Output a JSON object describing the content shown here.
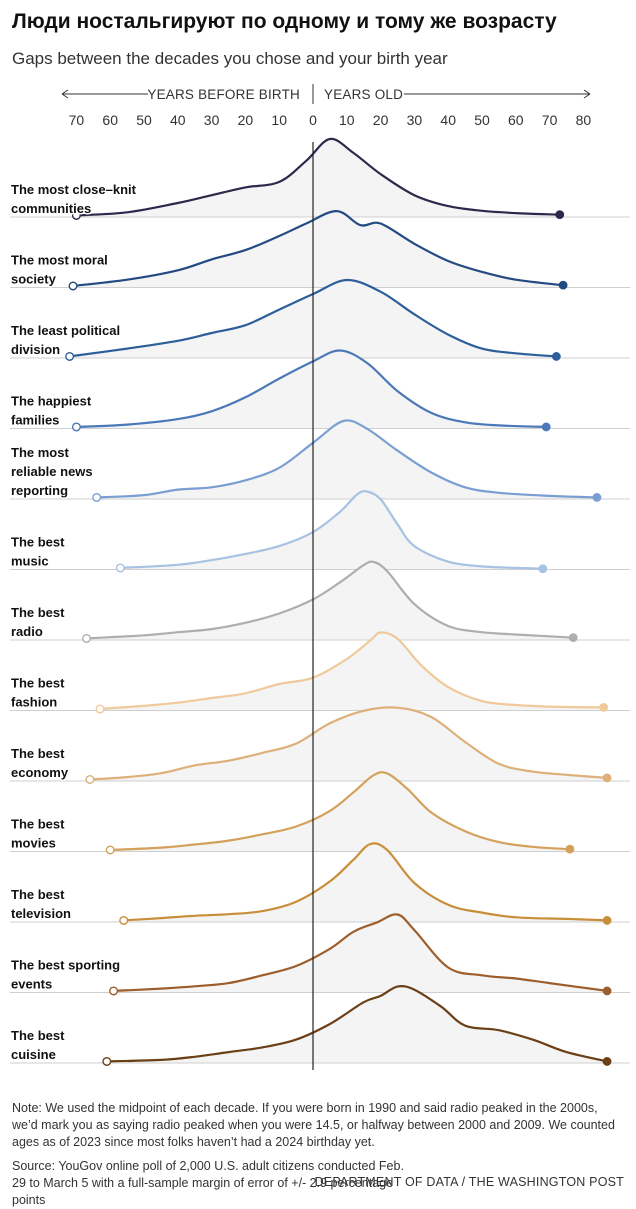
{
  "title": "Люди ностальгируют по одному и тому же возрасту",
  "subtitle": "Gaps between the decades you chose and your birth year",
  "note": "Note: We used the midpoint of each decade. If you were born in 1990 and said radio peaked in the 2000s, we’d mark you as saying radio peaked when you were 14.5, or halfway between 2000 and 2009. We counted ages as of 2023 since most folks haven’t had a 2024 birthday yet.",
  "source": "Source: YouGov online poll of 2,000 U.S. adult citizens conducted Feb. 29 to March 5 with a full-sample margin of error of +/- 2.9 percentage points",
  "credit": "DEPARTMENT OF DATA / THE WASHINGTON POST",
  "chart_data": {
    "type": "ridgeline",
    "x_axis": {
      "left_label": "YEARS BEFORE BIRTH",
      "right_label": "YEARS OLD",
      "ticks": [
        -70,
        -60,
        -50,
        -40,
        -30,
        -20,
        -10,
        0,
        10,
        20,
        30,
        40,
        50,
        60,
        70,
        80
      ],
      "tick_labels": [
        "70",
        "60",
        "50",
        "40",
        "30",
        "20",
        "10",
        "0",
        "10",
        "20",
        "30",
        "40",
        "50",
        "60",
        "70",
        "80"
      ],
      "range": [
        -72,
        83
      ]
    },
    "series": [
      {
        "name": "The most close-knit communities",
        "label_lines": [
          "The most close–knit",
          "communities"
        ],
        "color": "#2b2a4c",
        "min": -70,
        "max": 73,
        "points": [
          [
            -70,
            0.02
          ],
          [
            -55,
            0.06
          ],
          [
            -40,
            0.18
          ],
          [
            -30,
            0.28
          ],
          [
            -20,
            0.38
          ],
          [
            -10,
            0.45
          ],
          [
            -2,
            0.72
          ],
          [
            5,
            1.0
          ],
          [
            12,
            0.82
          ],
          [
            20,
            0.55
          ],
          [
            30,
            0.28
          ],
          [
            40,
            0.14
          ],
          [
            50,
            0.08
          ],
          [
            60,
            0.05
          ],
          [
            73,
            0.03
          ]
        ]
      },
      {
        "name": "The most moral society",
        "label_lines": [
          "The most moral",
          "society"
        ],
        "color": "#244a82",
        "min": -71,
        "max": 74,
        "points": [
          [
            -71,
            0.02
          ],
          [
            -55,
            0.1
          ],
          [
            -40,
            0.22
          ],
          [
            -30,
            0.36
          ],
          [
            -20,
            0.48
          ],
          [
            -10,
            0.66
          ],
          [
            -2,
            0.82
          ],
          [
            7,
            0.98
          ],
          [
            14,
            0.8
          ],
          [
            20,
            0.82
          ],
          [
            30,
            0.56
          ],
          [
            40,
            0.34
          ],
          [
            50,
            0.2
          ],
          [
            60,
            0.1
          ],
          [
            74,
            0.03
          ]
        ]
      },
      {
        "name": "The least political division",
        "label_lines": [
          "The least political",
          "division"
        ],
        "color": "#2e5e9a",
        "min": -72,
        "max": 72,
        "points": [
          [
            -72,
            0.02
          ],
          [
            -55,
            0.12
          ],
          [
            -40,
            0.22
          ],
          [
            -30,
            0.32
          ],
          [
            -20,
            0.42
          ],
          [
            -10,
            0.62
          ],
          [
            0,
            0.82
          ],
          [
            10,
            1.0
          ],
          [
            20,
            0.85
          ],
          [
            30,
            0.56
          ],
          [
            40,
            0.3
          ],
          [
            50,
            0.12
          ],
          [
            60,
            0.06
          ],
          [
            72,
            0.02
          ]
        ]
      },
      {
        "name": "The happiest families",
        "label_lines": [
          "The happiest",
          "families"
        ],
        "color": "#4a78b8",
        "min": -70,
        "max": 69,
        "points": [
          [
            -70,
            0.02
          ],
          [
            -55,
            0.05
          ],
          [
            -40,
            0.12
          ],
          [
            -30,
            0.22
          ],
          [
            -20,
            0.4
          ],
          [
            -10,
            0.64
          ],
          [
            0,
            0.86
          ],
          [
            8,
            1.0
          ],
          [
            16,
            0.84
          ],
          [
            25,
            0.48
          ],
          [
            35,
            0.2
          ],
          [
            45,
            0.08
          ],
          [
            55,
            0.04
          ],
          [
            69,
            0.02
          ]
        ]
      },
      {
        "name": "The most reliable news reporting",
        "label_lines": [
          "The most",
          "reliable news",
          "reporting"
        ],
        "color": "#7a9ed2",
        "min": -64,
        "max": 84,
        "points": [
          [
            -64,
            0.02
          ],
          [
            -50,
            0.05
          ],
          [
            -40,
            0.12
          ],
          [
            -30,
            0.15
          ],
          [
            -20,
            0.24
          ],
          [
            -10,
            0.4
          ],
          [
            0,
            0.72
          ],
          [
            9,
            1.0
          ],
          [
            16,
            0.9
          ],
          [
            25,
            0.62
          ],
          [
            35,
            0.34
          ],
          [
            45,
            0.15
          ],
          [
            55,
            0.08
          ],
          [
            70,
            0.04
          ],
          [
            84,
            0.02
          ]
        ]
      },
      {
        "name": "The best music",
        "label_lines": [
          "The best",
          "music"
        ],
        "color": "#a7c2e2",
        "min": -57,
        "max": 68,
        "points": [
          [
            -57,
            0.02
          ],
          [
            -40,
            0.06
          ],
          [
            -30,
            0.12
          ],
          [
            -20,
            0.2
          ],
          [
            -10,
            0.3
          ],
          [
            0,
            0.48
          ],
          [
            8,
            0.74
          ],
          [
            13,
            0.96
          ],
          [
            16,
            1.0
          ],
          [
            20,
            0.9
          ],
          [
            25,
            0.58
          ],
          [
            30,
            0.3
          ],
          [
            40,
            0.1
          ],
          [
            50,
            0.04
          ],
          [
            60,
            0.02
          ],
          [
            68,
            0.01
          ]
        ]
      },
      {
        "name": "The best radio",
        "label_lines": [
          "The best",
          "radio"
        ],
        "color": "#aeaeae",
        "min": -67,
        "max": 77,
        "points": [
          [
            -67,
            0.02
          ],
          [
            -50,
            0.06
          ],
          [
            -40,
            0.1
          ],
          [
            -30,
            0.14
          ],
          [
            -20,
            0.22
          ],
          [
            -10,
            0.34
          ],
          [
            0,
            0.52
          ],
          [
            8,
            0.74
          ],
          [
            15,
            0.96
          ],
          [
            18,
            1.0
          ],
          [
            22,
            0.88
          ],
          [
            30,
            0.46
          ],
          [
            40,
            0.18
          ],
          [
            50,
            0.1
          ],
          [
            60,
            0.07
          ],
          [
            77,
            0.03
          ]
        ]
      },
      {
        "name": "The best fashion",
        "label_lines": [
          "The best",
          "fashion"
        ],
        "color": "#f0c99a",
        "min": -63,
        "max": 86,
        "points": [
          [
            -63,
            0.02
          ],
          [
            -50,
            0.06
          ],
          [
            -40,
            0.1
          ],
          [
            -30,
            0.16
          ],
          [
            -20,
            0.22
          ],
          [
            -10,
            0.34
          ],
          [
            0,
            0.42
          ],
          [
            10,
            0.66
          ],
          [
            17,
            0.9
          ],
          [
            20,
            1.0
          ],
          [
            25,
            0.92
          ],
          [
            32,
            0.58
          ],
          [
            40,
            0.3
          ],
          [
            50,
            0.12
          ],
          [
            60,
            0.07
          ],
          [
            70,
            0.05
          ],
          [
            86,
            0.04
          ]
        ]
      },
      {
        "name": "The best economy",
        "label_lines": [
          "The best",
          "economy"
        ],
        "color": "#ddb07a",
        "min": -66,
        "max": 87,
        "points": [
          [
            -66,
            0.02
          ],
          [
            -55,
            0.05
          ],
          [
            -45,
            0.1
          ],
          [
            -35,
            0.2
          ],
          [
            -25,
            0.26
          ],
          [
            -15,
            0.36
          ],
          [
            -5,
            0.48
          ],
          [
            5,
            0.74
          ],
          [
            15,
            0.9
          ],
          [
            25,
            0.94
          ],
          [
            35,
            0.82
          ],
          [
            45,
            0.5
          ],
          [
            55,
            0.22
          ],
          [
            65,
            0.12
          ],
          [
            75,
            0.08
          ],
          [
            87,
            0.04
          ]
        ]
      },
      {
        "name": "The best movies",
        "label_lines": [
          "The best",
          "movies"
        ],
        "color": "#d4a15b",
        "min": -60,
        "max": 76,
        "points": [
          [
            -60,
            0.02
          ],
          [
            -45,
            0.05
          ],
          [
            -35,
            0.09
          ],
          [
            -25,
            0.14
          ],
          [
            -15,
            0.22
          ],
          [
            -5,
            0.32
          ],
          [
            5,
            0.52
          ],
          [
            12,
            0.76
          ],
          [
            18,
            0.98
          ],
          [
            22,
            1.0
          ],
          [
            28,
            0.8
          ],
          [
            35,
            0.5
          ],
          [
            45,
            0.26
          ],
          [
            55,
            0.12
          ],
          [
            65,
            0.06
          ],
          [
            76,
            0.03
          ]
        ]
      },
      {
        "name": "The best television",
        "label_lines": [
          "The best",
          "television"
        ],
        "color": "#c98e3a",
        "min": -56,
        "max": 87,
        "points": [
          [
            -56,
            0.02
          ],
          [
            -45,
            0.05
          ],
          [
            -35,
            0.08
          ],
          [
            -25,
            0.1
          ],
          [
            -15,
            0.14
          ],
          [
            -5,
            0.26
          ],
          [
            5,
            0.52
          ],
          [
            12,
            0.8
          ],
          [
            17,
            1.0
          ],
          [
            22,
            0.92
          ],
          [
            30,
            0.5
          ],
          [
            40,
            0.22
          ],
          [
            50,
            0.12
          ],
          [
            60,
            0.06
          ],
          [
            75,
            0.04
          ],
          [
            87,
            0.02
          ]
        ]
      },
      {
        "name": "The best sporting events",
        "label_lines": [
          "The best sporting",
          "events"
        ],
        "color": "#9c5e2c",
        "min": -59,
        "max": 87,
        "points": [
          [
            -59,
            0.02
          ],
          [
            -45,
            0.05
          ],
          [
            -35,
            0.08
          ],
          [
            -25,
            0.12
          ],
          [
            -15,
            0.22
          ],
          [
            -5,
            0.34
          ],
          [
            5,
            0.56
          ],
          [
            12,
            0.78
          ],
          [
            19,
            0.9
          ],
          [
            25,
            1.0
          ],
          [
            30,
            0.8
          ],
          [
            40,
            0.32
          ],
          [
            50,
            0.22
          ],
          [
            60,
            0.18
          ],
          [
            70,
            0.12
          ],
          [
            87,
            0.02
          ]
        ]
      },
      {
        "name": "The best cuisine",
        "label_lines": [
          "The best",
          "cuisine"
        ],
        "color": "#6b3f17",
        "min": -61,
        "max": 87,
        "points": [
          [
            -61,
            0.02
          ],
          [
            -45,
            0.04
          ],
          [
            -35,
            0.08
          ],
          [
            -25,
            0.14
          ],
          [
            -15,
            0.2
          ],
          [
            -5,
            0.3
          ],
          [
            5,
            0.5
          ],
          [
            15,
            0.78
          ],
          [
            20,
            0.86
          ],
          [
            25,
            0.98
          ],
          [
            30,
            0.94
          ],
          [
            38,
            0.72
          ],
          [
            45,
            0.48
          ],
          [
            55,
            0.42
          ],
          [
            65,
            0.3
          ],
          [
            75,
            0.14
          ],
          [
            87,
            0.02
          ]
        ]
      }
    ]
  }
}
